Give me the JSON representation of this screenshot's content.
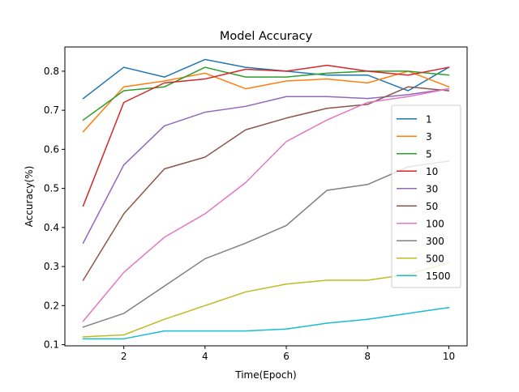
{
  "chart_data": {
    "type": "line",
    "title": "Model Accuracy",
    "xlabel": "Time(Epoch)",
    "ylabel": "Accuracy(%)",
    "xlim": [
      0.55,
      10.45
    ],
    "ylim": [
      0.097,
      0.862
    ],
    "xticks": [
      2,
      4,
      6,
      8,
      10
    ],
    "yticks": [
      0.1,
      0.2,
      0.3,
      0.4,
      0.5,
      0.6,
      0.7,
      0.8
    ],
    "grid": false,
    "legend_position": "center-right",
    "x": [
      1,
      2,
      3,
      4,
      5,
      6,
      7,
      8,
      9,
      10
    ],
    "series": [
      {
        "name": "1",
        "color": "#1f77b4",
        "values": [
          0.73,
          0.81,
          0.785,
          0.83,
          0.81,
          0.8,
          0.79,
          0.79,
          0.75,
          0.81
        ]
      },
      {
        "name": "3",
        "color": "#ff7f0e",
        "values": [
          0.645,
          0.76,
          0.775,
          0.795,
          0.755,
          0.775,
          0.78,
          0.77,
          0.8,
          0.76
        ]
      },
      {
        "name": "5",
        "color": "#2ca02c",
        "values": [
          0.675,
          0.75,
          0.76,
          0.81,
          0.785,
          0.785,
          0.795,
          0.8,
          0.8,
          0.79
        ]
      },
      {
        "name": "10",
        "color": "#d62728",
        "values": [
          0.455,
          0.72,
          0.77,
          0.78,
          0.805,
          0.8,
          0.815,
          0.8,
          0.79,
          0.81
        ]
      },
      {
        "name": "30",
        "color": "#9467bd",
        "values": [
          0.36,
          0.56,
          0.66,
          0.695,
          0.71,
          0.735,
          0.735,
          0.73,
          0.74,
          0.755
        ]
      },
      {
        "name": "50",
        "color": "#8c564b",
        "values": [
          0.265,
          0.435,
          0.55,
          0.58,
          0.65,
          0.68,
          0.705,
          0.715,
          0.76,
          0.75
        ]
      },
      {
        "name": "100",
        "color": "#e377c2",
        "values": [
          0.16,
          0.285,
          0.375,
          0.435,
          0.515,
          0.62,
          0.675,
          0.72,
          0.735,
          0.755
        ]
      },
      {
        "name": "300",
        "color": "#7f7f7f",
        "values": [
          0.145,
          0.18,
          0.25,
          0.32,
          0.36,
          0.405,
          0.495,
          0.51,
          0.555,
          0.57
        ]
      },
      {
        "name": "500",
        "color": "#bcbd22",
        "values": [
          0.12,
          0.125,
          0.165,
          0.2,
          0.235,
          0.255,
          0.265,
          0.265,
          0.28,
          0.31
        ]
      },
      {
        "name": "1500",
        "color": "#17becf",
        "values": [
          0.115,
          0.115,
          0.135,
          0.135,
          0.135,
          0.14,
          0.155,
          0.165,
          0.18,
          0.195
        ]
      }
    ]
  }
}
